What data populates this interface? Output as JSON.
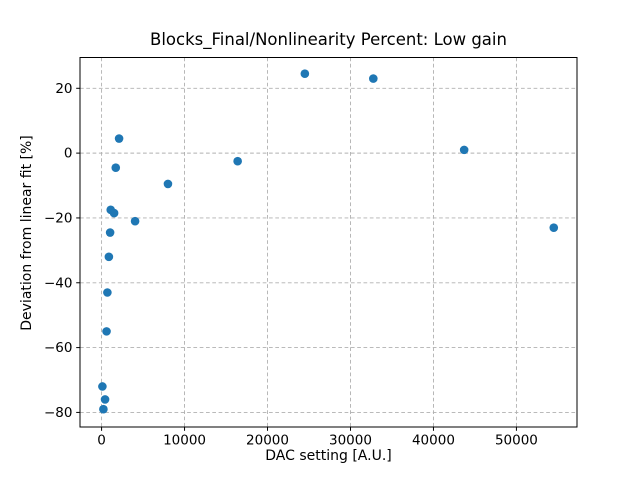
{
  "chart_data": {
    "type": "scatter",
    "title": "Blocks_Final/Nonlinearity Percent: Low gain",
    "xlabel": "DAC setting [A.U.]",
    "ylabel": "Deviation from linear fit [%]",
    "xlim": [
      -2600,
      57300
    ],
    "ylim": [
      -84.5,
      29.5
    ],
    "xticks": [
      0,
      10000,
      20000,
      30000,
      40000,
      50000
    ],
    "yticks": [
      20,
      0,
      -20,
      -40,
      -60,
      -80
    ],
    "grid": "dashed",
    "grid_color": "#b0b0b0",
    "marker_color": "#1f77b4",
    "background": "#ffffff",
    "legend": "none",
    "points": [
      [
        100,
        -72
      ],
      [
        220,
        -79
      ],
      [
        420,
        -76
      ],
      [
        600,
        -55
      ],
      [
        700,
        -43
      ],
      [
        880,
        -32
      ],
      [
        1030,
        -24.5
      ],
      [
        1100,
        -17.5
      ],
      [
        1510,
        -18.5
      ],
      [
        1710,
        -4.5
      ],
      [
        2110,
        4.5
      ],
      [
        4040,
        -21
      ],
      [
        8000,
        -9.5
      ],
      [
        16400,
        -2.5
      ],
      [
        24500,
        24.5
      ],
      [
        32750,
        23
      ],
      [
        43700,
        1
      ],
      [
        54500,
        -23
      ]
    ]
  }
}
